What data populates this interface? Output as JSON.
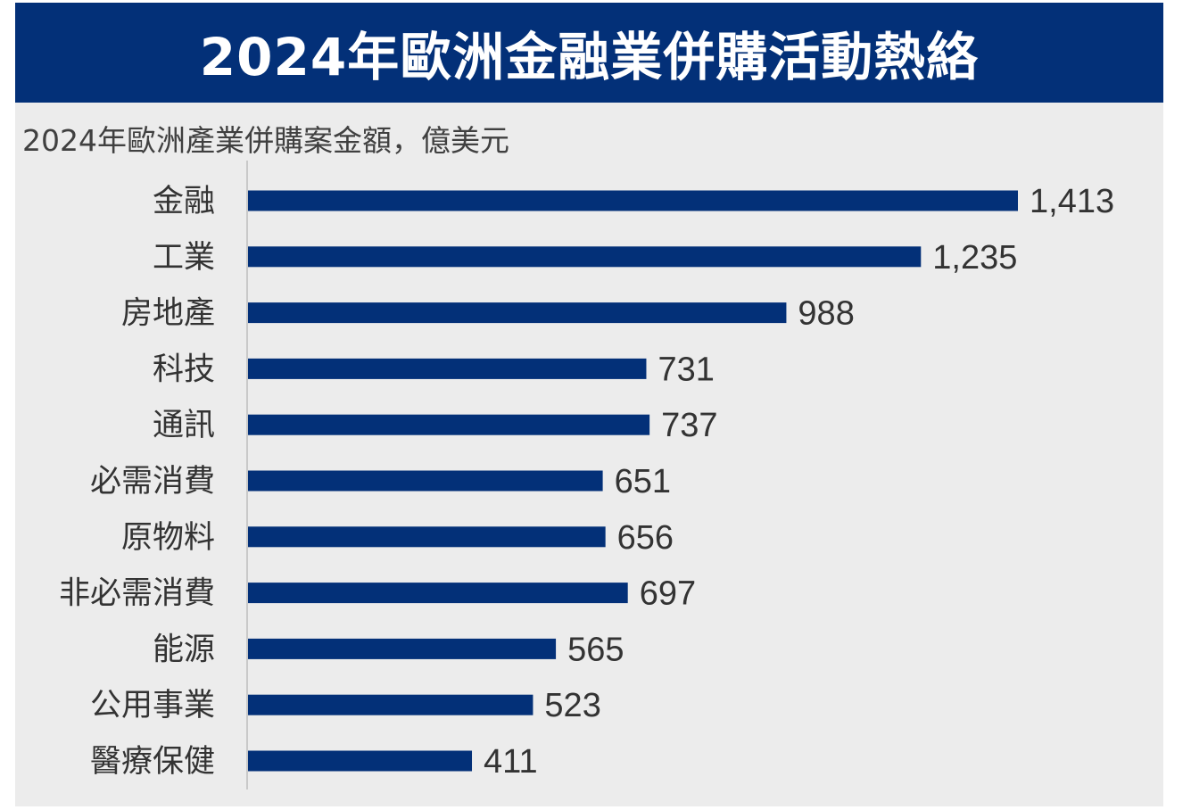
{
  "header": {
    "title": "2024年歐洲金融業併購活動熱絡"
  },
  "colors": {
    "banner": "#033078",
    "bar": "#033078",
    "panel": "#ececec"
  },
  "chart_data": {
    "type": "bar",
    "orientation": "horizontal",
    "title": "2024年歐洲產業併購案金額，億美元",
    "categories": [
      "金融",
      "工業",
      "房地產",
      "科技",
      "通訊",
      "必需消費",
      "原物料",
      "非必需消費",
      "能源",
      "公用事業",
      "醫療保健"
    ],
    "values": [
      1413,
      1235,
      988,
      731,
      737,
      651,
      656,
      697,
      565,
      523,
      411
    ],
    "value_labels": [
      "1,413",
      "1,235",
      "988",
      "731",
      "737",
      "651",
      "656",
      "697",
      "565",
      "523",
      "411"
    ],
    "xlim": [
      0,
      1413
    ],
    "grid": false,
    "legend": "none"
  }
}
